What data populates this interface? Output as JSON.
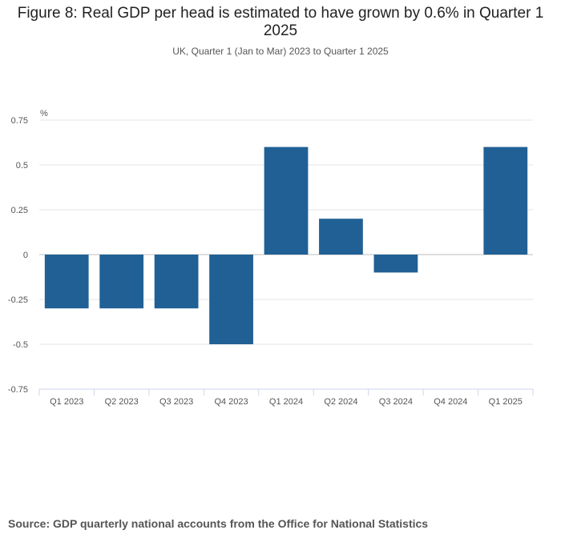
{
  "title": "Figure 8: Real GDP per head is estimated to have grown by 0.6% in Quarter 1 2025",
  "subtitle": "UK, Quarter 1 (Jan to Mar) 2023 to Quarter 1 2025",
  "source": "Source: GDP quarterly national accounts from the Office for National Statistics",
  "colors": {
    "bar": "#206095",
    "grid": "#e6e6e6",
    "axis": "#ccd6eb"
  },
  "chart_data": {
    "type": "bar",
    "title": "Figure 8: Real GDP per head is estimated to have grown by 0.6% in Quarter 1 2025",
    "subtitle": "UK, Quarter 1 (Jan to Mar) 2023 to Quarter 1 2025",
    "unit_label": "%",
    "categories": [
      "Q1 2023",
      "Q2 2023",
      "Q3 2023",
      "Q4 2023",
      "Q1 2024",
      "Q2 2024",
      "Q3 2024",
      "Q4 2024",
      "Q1 2025"
    ],
    "values": [
      -0.3,
      -0.3,
      -0.3,
      -0.5,
      0.6,
      0.2,
      -0.1,
      0.0,
      0.6
    ],
    "ylim": [
      -0.75,
      0.75
    ],
    "yticks": [
      0.75,
      0.5,
      0.25,
      0,
      -0.25,
      -0.5,
      -0.75
    ],
    "ytick_labels": [
      "0.75",
      "0.5",
      "0.25",
      "0",
      "-0.25",
      "-0.5",
      "-0.75"
    ],
    "grid": true,
    "legend": "none"
  }
}
